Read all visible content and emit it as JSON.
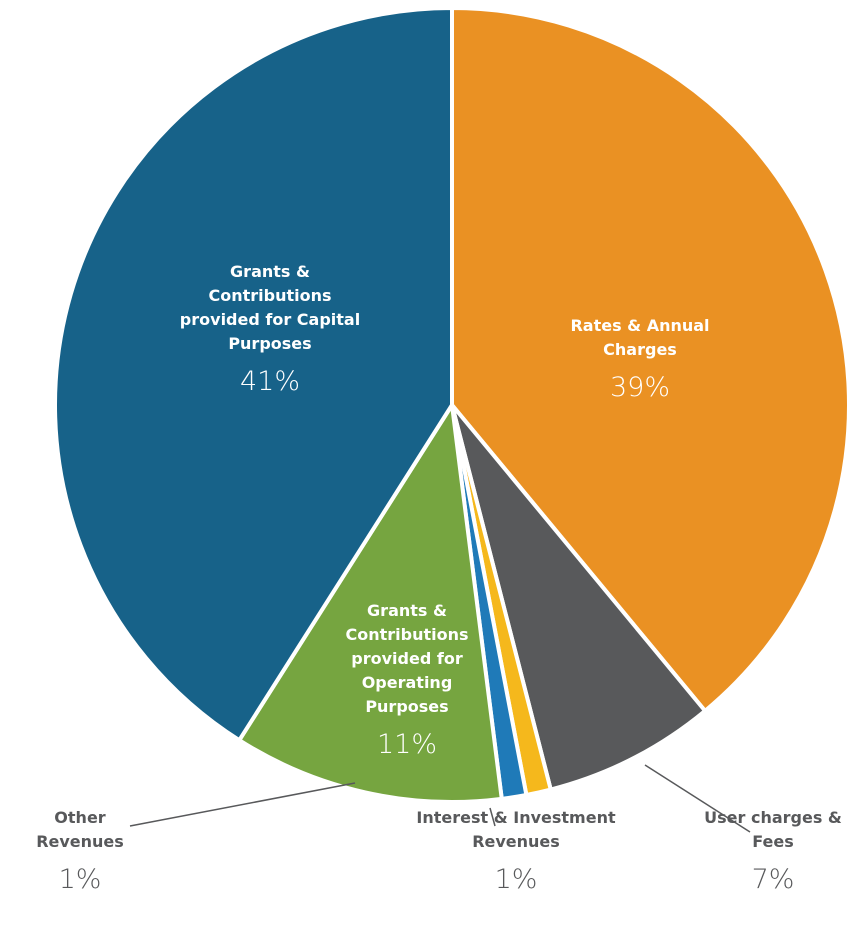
{
  "chart_data": {
    "type": "pie",
    "categories": [
      "Rates & Annual Charges",
      "User charges & Fees",
      "Interest & Investment Revenues",
      "Other Revenues",
      "Grants & Contributions provided for Operating Purposes",
      "Grants & Contributions provided for Capital Purposes"
    ],
    "values": [
      39,
      7,
      1,
      1,
      11,
      41
    ],
    "value_labels": [
      "39%",
      "7%",
      "1%",
      "1%",
      "11%",
      "41%"
    ],
    "colors": [
      "#ea9123",
      "#58595b",
      "#f5b81c",
      "#1f7ab8",
      "#76a540",
      "#176289"
    ]
  }
}
